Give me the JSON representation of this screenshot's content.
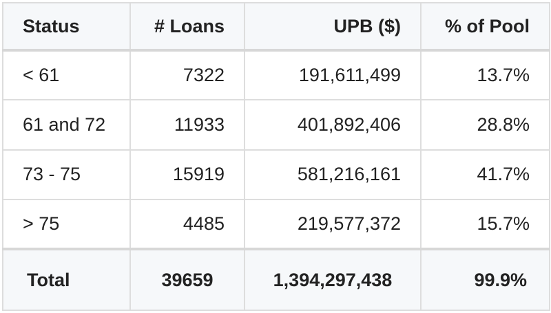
{
  "table": {
    "headers": [
      "Status",
      "# Loans",
      "UPB ($)",
      "% of Pool"
    ],
    "rows": [
      [
        "< 61",
        "7322",
        "191,611,499",
        "13.7%"
      ],
      [
        "61 and 72",
        "11933",
        "401,892,406",
        "28.8%"
      ],
      [
        "73 - 75",
        "15919",
        "581,216,161",
        "41.7%"
      ],
      [
        "> 75",
        "4485",
        "219,577,372",
        "15.7%"
      ]
    ],
    "total": [
      "Total",
      "39659",
      "1,394,297,438",
      "99.9%"
    ]
  },
  "colors": {
    "header_bg": "#f6f8fa",
    "border": "#dddddd",
    "text": "#222222"
  }
}
